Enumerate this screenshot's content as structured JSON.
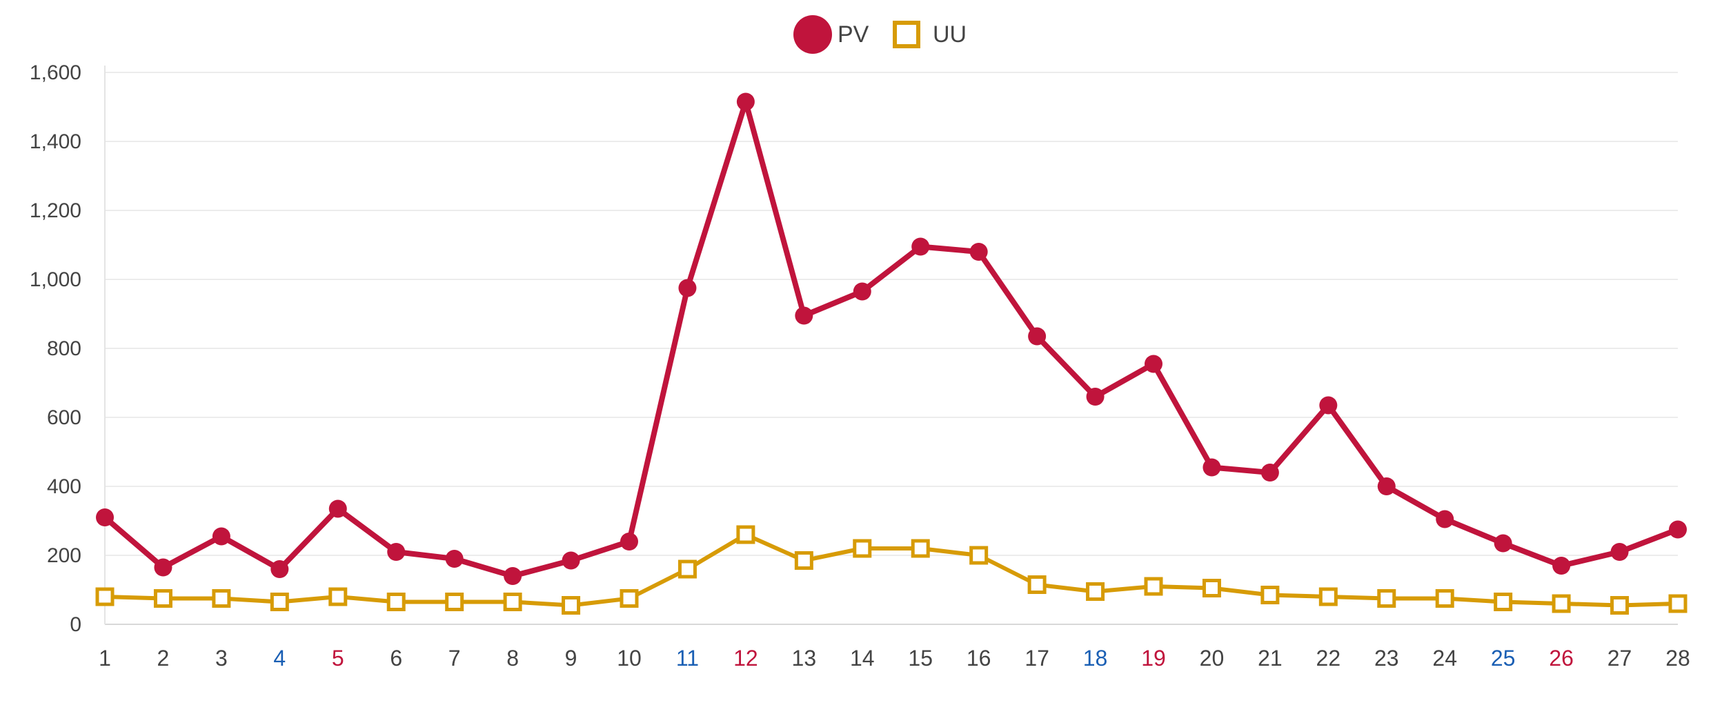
{
  "chart_data": {
    "type": "line",
    "categories": [
      "1",
      "2",
      "3",
      "4",
      "5",
      "6",
      "7",
      "8",
      "9",
      "10",
      "11",
      "12",
      "13",
      "14",
      "15",
      "16",
      "17",
      "18",
      "19",
      "20",
      "21",
      "22",
      "23",
      "24",
      "25",
      "26",
      "27",
      "28"
    ],
    "category_colors": {
      "4": "#1a5fb4",
      "11": "#1a5fb4",
      "18": "#1a5fb4",
      "25": "#1a5fb4",
      "5": "#c0143c",
      "12": "#c0143c",
      "19": "#c0143c",
      "26": "#c0143c"
    },
    "default_category_color": "#444444",
    "y_ticks": [
      {
        "value": 0,
        "label": "0"
      },
      {
        "value": 200,
        "label": "200"
      },
      {
        "value": 400,
        "label": "400"
      },
      {
        "value": 600,
        "label": "600"
      },
      {
        "value": 800,
        "label": "800"
      },
      {
        "value": 1000,
        "label": "1,000"
      },
      {
        "value": 1200,
        "label": "1,200"
      },
      {
        "value": 1400,
        "label": "1,400"
      },
      {
        "value": 1600,
        "label": "1,600"
      }
    ],
    "ylim": [
      0,
      1600
    ],
    "legend_position": "top-center",
    "series": [
      {
        "name": "PV",
        "color": "#c0143c",
        "marker": "circle-filled",
        "values": [
          310,
          165,
          255,
          160,
          335,
          210,
          190,
          140,
          185,
          240,
          975,
          1515,
          895,
          965,
          1095,
          1080,
          835,
          660,
          755,
          455,
          440,
          635,
          400,
          305,
          235,
          170,
          210,
          275
        ]
      },
      {
        "name": "UU",
        "color": "#d79b06",
        "marker": "square-hollow",
        "values": [
          80,
          75,
          75,
          65,
          80,
          65,
          65,
          65,
          55,
          75,
          160,
          260,
          185,
          220,
          220,
          200,
          115,
          95,
          110,
          105,
          85,
          80,
          75,
          75,
          65,
          60,
          55,
          60
        ]
      }
    ]
  }
}
